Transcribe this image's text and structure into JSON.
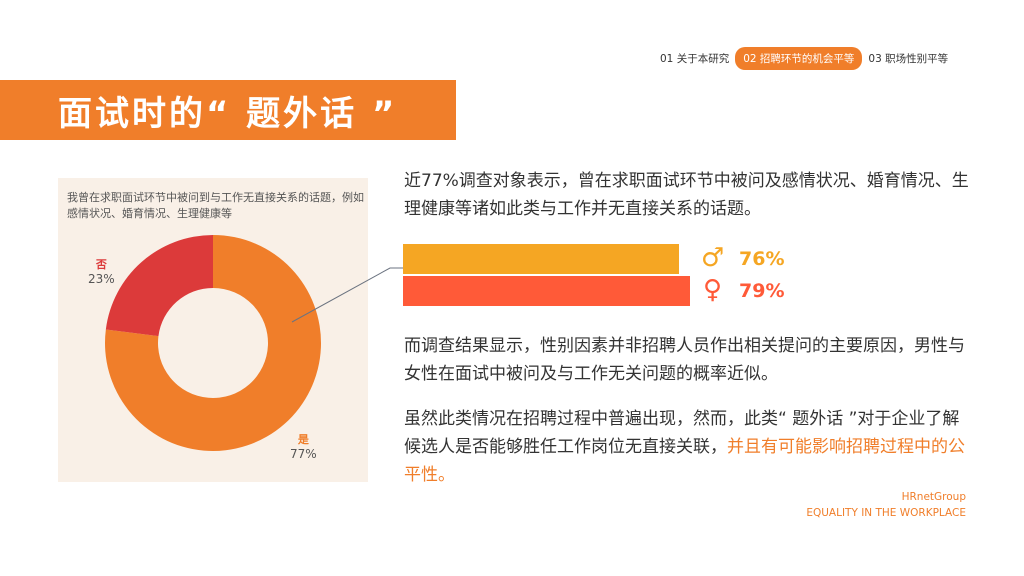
{
  "nav": {
    "items": [
      {
        "label": "01 关于本研究"
      },
      {
        "label": "02 招聘环节的机会平等"
      },
      {
        "label": "03 职场性别平等"
      }
    ]
  },
  "title": "面试时的“ 题外话 ”",
  "chart": {
    "question": "我曾在求职面试环节中被问到与工作无直接关系的话题，例如感情状况、婚育情况、生理健康等",
    "yes_label": "是",
    "yes_pct": "77%",
    "no_label": "否",
    "no_pct": "23%"
  },
  "chart_data": {
    "type": "pie",
    "categories": [
      "是",
      "否"
    ],
    "values": [
      77,
      23
    ],
    "colors": [
      "#f07e2a",
      "#dc3a3a"
    ]
  },
  "paragraph1": "近77%调查对象表示，曾在求职面试环节中被问及感情状况、婚育情况、生理健康等诸如此类与工作并无直接关系的话题。",
  "gender_bars": {
    "male_icon": "male-icon",
    "male_pct": "76%",
    "male_value": 76,
    "male_color": "#f5a623",
    "female_icon": "female-icon",
    "female_pct": "79%",
    "female_value": 79,
    "female_color": "#ff5a38"
  },
  "paragraph2": "而调查结果显示，性别因素并非招聘人员作出相关提问的主要原因，男性与女性在面试中被问及与工作无关问题的概率近似。",
  "paragraph3_normal": "虽然此类情况在招聘过程中普遍出现，然而，此类“ 题外话 ”对于企业了解候选人是否能够胜任工作岗位无直接关联，",
  "paragraph3_highlight": "并且有可能影响招聘过程中的公平性。",
  "footer": {
    "brand": "HRnetGroup",
    "subtitle": "EQUALITY IN THE WORKPLACE"
  }
}
